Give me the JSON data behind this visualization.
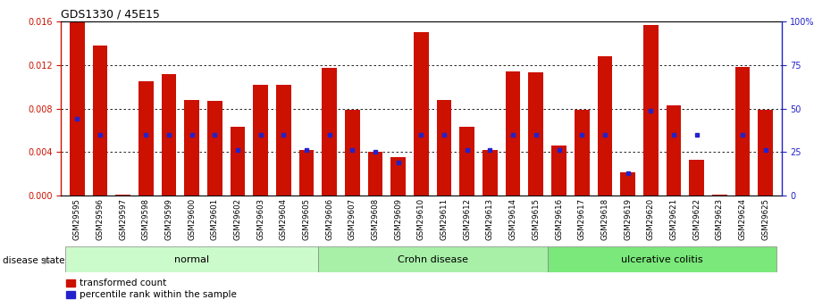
{
  "title": "GDS1330 / 45E15",
  "samples": [
    "GSM29595",
    "GSM29596",
    "GSM29597",
    "GSM29598",
    "GSM29599",
    "GSM29600",
    "GSM29601",
    "GSM29602",
    "GSM29603",
    "GSM29604",
    "GSM29605",
    "GSM29606",
    "GSM29607",
    "GSM29608",
    "GSM29609",
    "GSM29610",
    "GSM29611",
    "GSM29612",
    "GSM29613",
    "GSM29614",
    "GSM29615",
    "GSM29616",
    "GSM29617",
    "GSM29618",
    "GSM29619",
    "GSM29620",
    "GSM29621",
    "GSM29622",
    "GSM29623",
    "GSM29624",
    "GSM29625"
  ],
  "red_values": [
    0.0159,
    0.0138,
    0.0001,
    0.0105,
    0.01115,
    0.0088,
    0.0087,
    0.0063,
    0.0102,
    0.0102,
    0.0042,
    0.01175,
    0.0079,
    0.00405,
    0.0035,
    0.01505,
    0.0088,
    0.0063,
    0.0042,
    0.01145,
    0.01135,
    0.0046,
    0.0079,
    0.0128,
    0.0021,
    0.01565,
    0.0083,
    0.00325,
    0.0001,
    0.01185,
    0.0079
  ],
  "blue_percentiles": [
    44,
    35,
    0,
    35,
    35,
    35,
    35,
    26,
    35,
    35,
    26,
    35,
    26,
    25,
    19,
    35,
    35,
    26,
    26,
    35,
    35,
    26,
    35,
    35,
    13,
    49,
    35,
    35,
    0,
    35,
    26
  ],
  "groups": [
    {
      "label": "normal",
      "start": 0,
      "end": 10,
      "color": "#cbfacb"
    },
    {
      "label": "Crohn disease",
      "start": 11,
      "end": 20,
      "color": "#a8f0a8"
    },
    {
      "label": "ulcerative colitis",
      "start": 21,
      "end": 30,
      "color": "#7ae87a"
    }
  ],
  "ylim_left": [
    0,
    0.016
  ],
  "ylim_right": [
    0,
    100
  ],
  "yticks_left": [
    0,
    0.004,
    0.008,
    0.012,
    0.016
  ],
  "yticks_right": [
    0,
    25,
    50,
    75,
    100
  ],
  "red_color": "#cc1100",
  "blue_color": "#2222cc",
  "bar_width": 0.65,
  "legend_items": [
    "transformed count",
    "percentile rank within the sample"
  ],
  "disease_state_label": "disease state"
}
